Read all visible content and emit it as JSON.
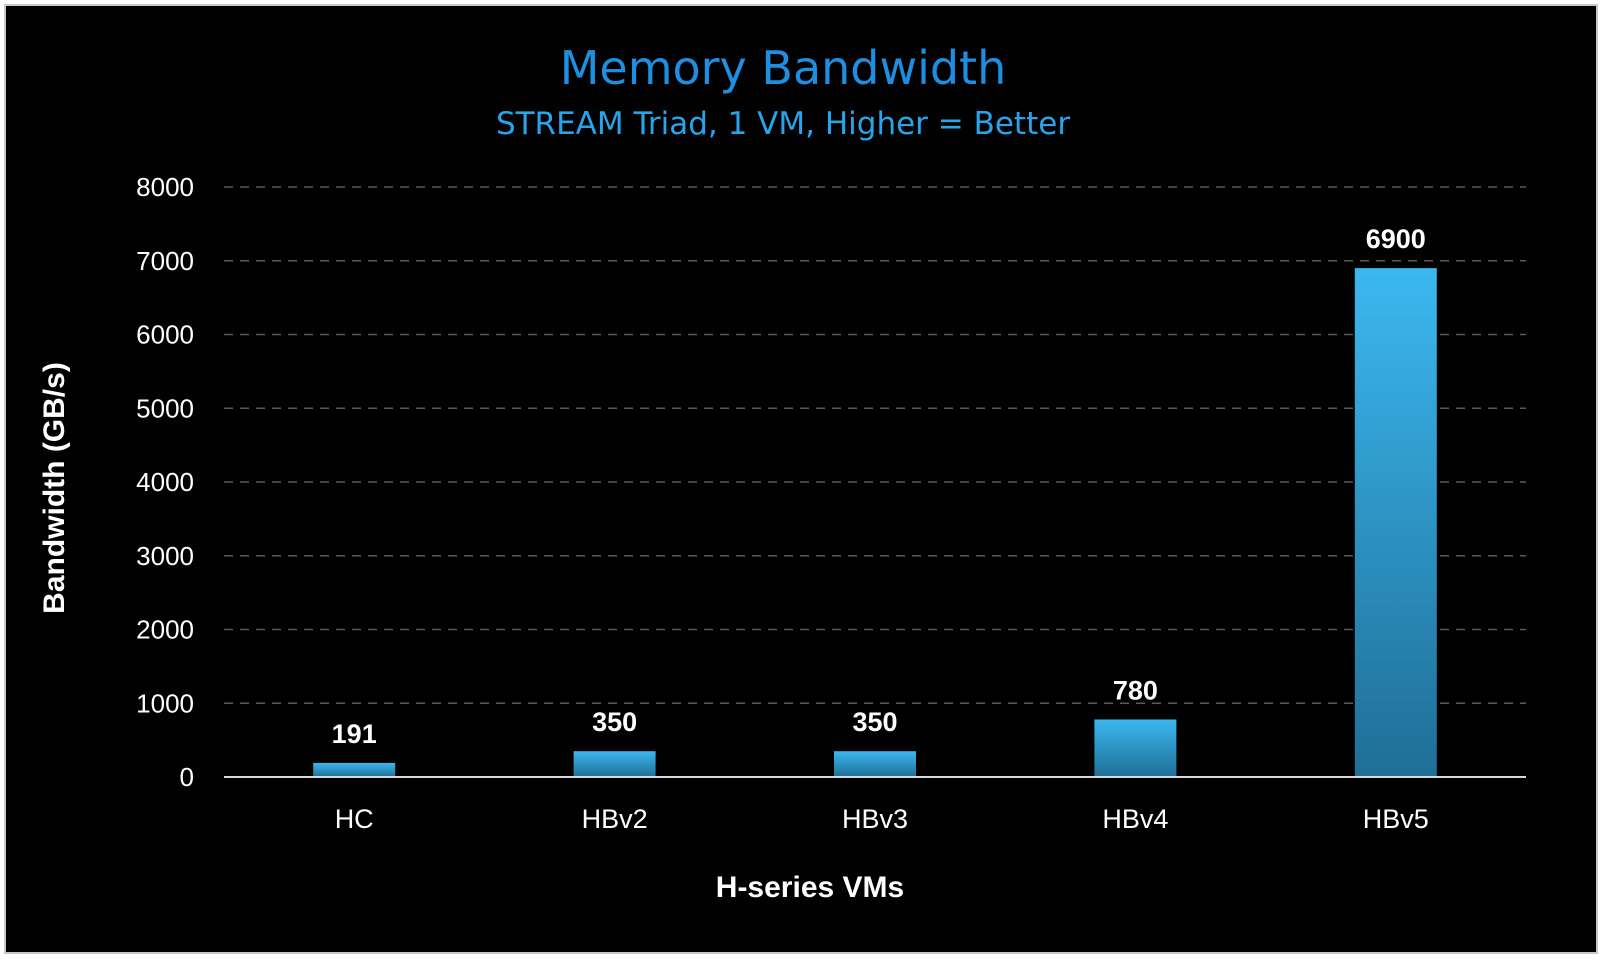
{
  "chart_data": {
    "type": "bar",
    "title": "Memory Bandwidth",
    "subtitle": "STREAM Triad, 1 VM, Higher = Better",
    "xlabel": "H-series VMs",
    "ylabel": "Bandwidth (GB/s)",
    "categories": [
      "HC",
      "HBv2",
      "HBv3",
      "HBv4",
      "HBv5"
    ],
    "values": [
      191,
      350,
      350,
      780,
      6900
    ],
    "data_labels": [
      "191",
      "350",
      "350",
      "780",
      "6900"
    ],
    "ylim": [
      0,
      8000
    ],
    "yticks": [
      0,
      1000,
      2000,
      3000,
      4000,
      5000,
      6000,
      7000,
      8000
    ],
    "ytick_labels": [
      "0",
      "1000",
      "2000",
      "3000",
      "4000",
      "5000",
      "6000",
      "7000",
      "8000"
    ],
    "grid": true,
    "grid_style": "dashed",
    "legend": "none",
    "colors": {
      "background": "#000000",
      "bar_top": "#3bb8f0",
      "bar_bottom": "#1f6e96",
      "title": "#1e8fe0",
      "subtitle": "#27a4ea",
      "gridline": "#5a5a5a",
      "axis_line": "#d9d9d9",
      "text": "#ffffff"
    }
  }
}
